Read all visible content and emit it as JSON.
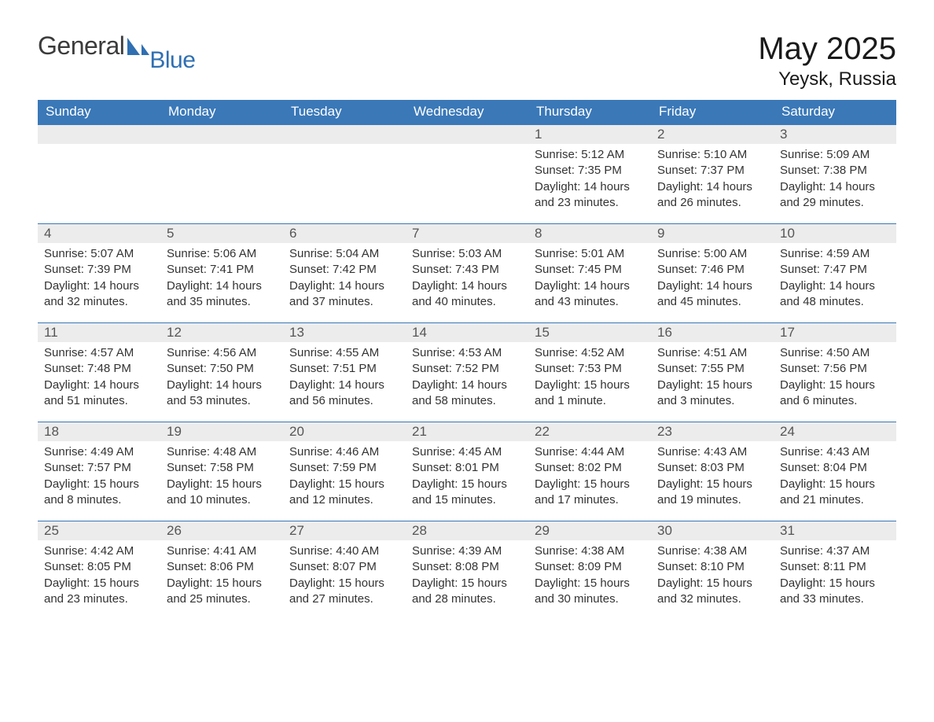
{
  "logo": {
    "part1": "General",
    "part2": "Blue"
  },
  "title": "May 2025",
  "location": "Yeysk, Russia",
  "colors": {
    "header_bg": "#3a78b8",
    "header_text": "#ffffff",
    "daynum_bg": "#ececec",
    "daynum_text": "#555555",
    "body_text": "#333333",
    "logo_blue": "#2f6fb2",
    "page_bg": "#ffffff"
  },
  "day_labels": [
    "Sunday",
    "Monday",
    "Tuesday",
    "Wednesday",
    "Thursday",
    "Friday",
    "Saturday"
  ],
  "leading_blanks": 4,
  "days": [
    {
      "n": "1",
      "sunrise": "5:12 AM",
      "sunset": "7:35 PM",
      "daylight": "14 hours and 23 minutes."
    },
    {
      "n": "2",
      "sunrise": "5:10 AM",
      "sunset": "7:37 PM",
      "daylight": "14 hours and 26 minutes."
    },
    {
      "n": "3",
      "sunrise": "5:09 AM",
      "sunset": "7:38 PM",
      "daylight": "14 hours and 29 minutes."
    },
    {
      "n": "4",
      "sunrise": "5:07 AM",
      "sunset": "7:39 PM",
      "daylight": "14 hours and 32 minutes."
    },
    {
      "n": "5",
      "sunrise": "5:06 AM",
      "sunset": "7:41 PM",
      "daylight": "14 hours and 35 minutes."
    },
    {
      "n": "6",
      "sunrise": "5:04 AM",
      "sunset": "7:42 PM",
      "daylight": "14 hours and 37 minutes."
    },
    {
      "n": "7",
      "sunrise": "5:03 AM",
      "sunset": "7:43 PM",
      "daylight": "14 hours and 40 minutes."
    },
    {
      "n": "8",
      "sunrise": "5:01 AM",
      "sunset": "7:45 PM",
      "daylight": "14 hours and 43 minutes."
    },
    {
      "n": "9",
      "sunrise": "5:00 AM",
      "sunset": "7:46 PM",
      "daylight": "14 hours and 45 minutes."
    },
    {
      "n": "10",
      "sunrise": "4:59 AM",
      "sunset": "7:47 PM",
      "daylight": "14 hours and 48 minutes."
    },
    {
      "n": "11",
      "sunrise": "4:57 AM",
      "sunset": "7:48 PM",
      "daylight": "14 hours and 51 minutes."
    },
    {
      "n": "12",
      "sunrise": "4:56 AM",
      "sunset": "7:50 PM",
      "daylight": "14 hours and 53 minutes."
    },
    {
      "n": "13",
      "sunrise": "4:55 AM",
      "sunset": "7:51 PM",
      "daylight": "14 hours and 56 minutes."
    },
    {
      "n": "14",
      "sunrise": "4:53 AM",
      "sunset": "7:52 PM",
      "daylight": "14 hours and 58 minutes."
    },
    {
      "n": "15",
      "sunrise": "4:52 AM",
      "sunset": "7:53 PM",
      "daylight": "15 hours and 1 minute."
    },
    {
      "n": "16",
      "sunrise": "4:51 AM",
      "sunset": "7:55 PM",
      "daylight": "15 hours and 3 minutes."
    },
    {
      "n": "17",
      "sunrise": "4:50 AM",
      "sunset": "7:56 PM",
      "daylight": "15 hours and 6 minutes."
    },
    {
      "n": "18",
      "sunrise": "4:49 AM",
      "sunset": "7:57 PM",
      "daylight": "15 hours and 8 minutes."
    },
    {
      "n": "19",
      "sunrise": "4:48 AM",
      "sunset": "7:58 PM",
      "daylight": "15 hours and 10 minutes."
    },
    {
      "n": "20",
      "sunrise": "4:46 AM",
      "sunset": "7:59 PM",
      "daylight": "15 hours and 12 minutes."
    },
    {
      "n": "21",
      "sunrise": "4:45 AM",
      "sunset": "8:01 PM",
      "daylight": "15 hours and 15 minutes."
    },
    {
      "n": "22",
      "sunrise": "4:44 AM",
      "sunset": "8:02 PM",
      "daylight": "15 hours and 17 minutes."
    },
    {
      "n": "23",
      "sunrise": "4:43 AM",
      "sunset": "8:03 PM",
      "daylight": "15 hours and 19 minutes."
    },
    {
      "n": "24",
      "sunrise": "4:43 AM",
      "sunset": "8:04 PM",
      "daylight": "15 hours and 21 minutes."
    },
    {
      "n": "25",
      "sunrise": "4:42 AM",
      "sunset": "8:05 PM",
      "daylight": "15 hours and 23 minutes."
    },
    {
      "n": "26",
      "sunrise": "4:41 AM",
      "sunset": "8:06 PM",
      "daylight": "15 hours and 25 minutes."
    },
    {
      "n": "27",
      "sunrise": "4:40 AM",
      "sunset": "8:07 PM",
      "daylight": "15 hours and 27 minutes."
    },
    {
      "n": "28",
      "sunrise": "4:39 AM",
      "sunset": "8:08 PM",
      "daylight": "15 hours and 28 minutes."
    },
    {
      "n": "29",
      "sunrise": "4:38 AM",
      "sunset": "8:09 PM",
      "daylight": "15 hours and 30 minutes."
    },
    {
      "n": "30",
      "sunrise": "4:38 AM",
      "sunset": "8:10 PM",
      "daylight": "15 hours and 32 minutes."
    },
    {
      "n": "31",
      "sunrise": "4:37 AM",
      "sunset": "8:11 PM",
      "daylight": "15 hours and 33 minutes."
    }
  ],
  "labels": {
    "sunrise": "Sunrise: ",
    "sunset": "Sunset: ",
    "daylight": "Daylight: "
  }
}
